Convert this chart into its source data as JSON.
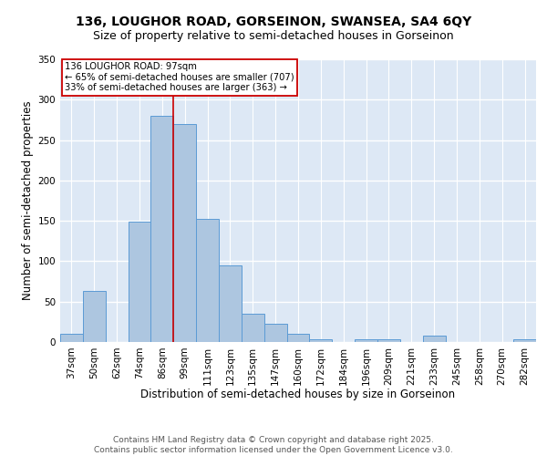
{
  "title_line1": "136, LOUGHOR ROAD, GORSEINON, SWANSEA, SA4 6QY",
  "title_line2": "Size of property relative to semi-detached houses in Gorseinon",
  "xlabel": "Distribution of semi-detached houses by size in Gorseinon",
  "ylabel": "Number of semi-detached properties",
  "categories": [
    "37sqm",
    "50sqm",
    "62sqm",
    "74sqm",
    "86sqm",
    "99sqm",
    "111sqm",
    "123sqm",
    "135sqm",
    "147sqm",
    "160sqm",
    "172sqm",
    "184sqm",
    "196sqm",
    "209sqm",
    "221sqm",
    "233sqm",
    "245sqm",
    "258sqm",
    "270sqm",
    "282sqm"
  ],
  "values": [
    10,
    63,
    0,
    149,
    280,
    270,
    152,
    95,
    35,
    23,
    10,
    3,
    0,
    3,
    3,
    0,
    8,
    0,
    0,
    0,
    3
  ],
  "bar_color": "#adc6e0",
  "bar_edge_color": "#5b9bd5",
  "background_color": "#dde8f5",
  "grid_color": "#ffffff",
  "vline_x": 4.5,
  "vline_color": "#cc0000",
  "annotation_text": "136 LOUGHOR ROAD: 97sqm\n← 65% of semi-detached houses are smaller (707)\n33% of semi-detached houses are larger (363) →",
  "annotation_box_color": "#ffffff",
  "annotation_box_edge": "#cc0000",
  "ylim": [
    0,
    350
  ],
  "yticks": [
    0,
    50,
    100,
    150,
    200,
    250,
    300,
    350
  ],
  "footer_text": "Contains HM Land Registry data © Crown copyright and database right 2025.\nContains public sector information licensed under the Open Government Licence v3.0.",
  "title_fontsize": 10,
  "subtitle_fontsize": 9,
  "axis_label_fontsize": 8.5,
  "tick_fontsize": 7.5,
  "footer_fontsize": 6.5
}
